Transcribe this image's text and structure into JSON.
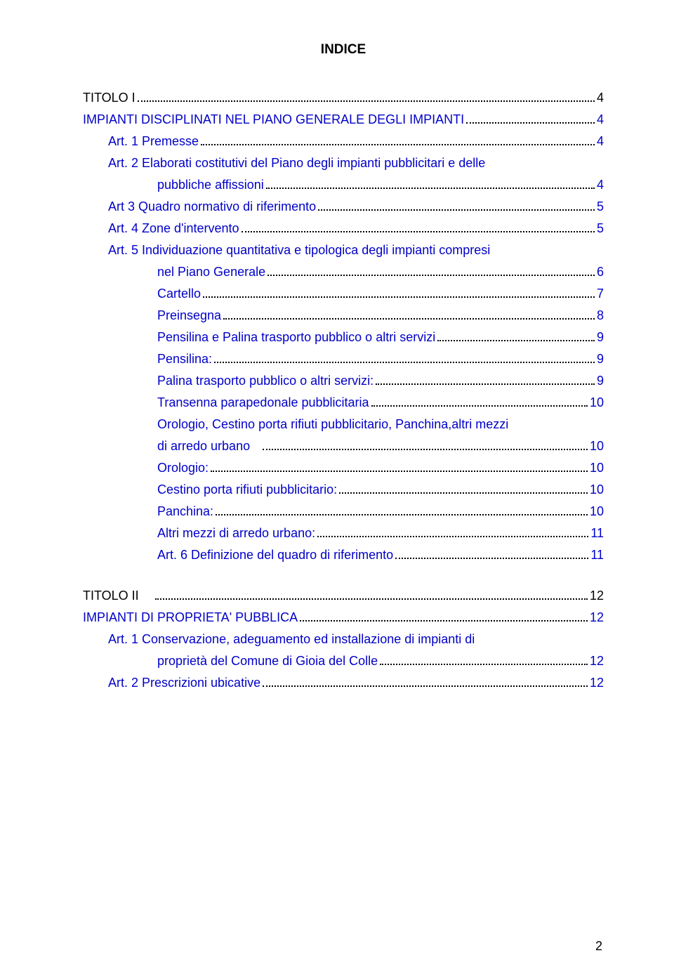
{
  "title": "INDICE",
  "page_number": "2",
  "entries": [
    {
      "label": "TITOLO I",
      "page": "4",
      "indent": "indent-0",
      "blue": false
    },
    {
      "label": "IMPIANTI DISCIPLINATI NEL PIANO GENERALE DEGLI IMPIANTI",
      "page": "4",
      "indent": "indent-0",
      "blue": true
    },
    {
      "label": "Art. 1 Premesse",
      "page": "4",
      "indent": "indent-1",
      "blue": true
    },
    {
      "label": "Art. 2 Elaborati costitutivi del Piano degli impianti pubblicitari e delle",
      "continuation": true,
      "indent": "indent-1",
      "blue": true
    },
    {
      "label": "pubbliche affissioni",
      "page": "4",
      "indent": "indent-2",
      "blue": true
    },
    {
      "label": "Art 3 Quadro normativo di riferimento",
      "page": "5",
      "indent": "indent-1",
      "blue": true
    },
    {
      "label": "Art. 4 Zone d'intervento",
      "page": "5",
      "indent": "indent-1",
      "blue": true
    },
    {
      "label": "Art. 5 Individuazione quantitativa e tipologica degli impianti compresi",
      "continuation": true,
      "indent": "indent-1",
      "blue": true
    },
    {
      "label": "nel Piano Generale",
      "page": "6",
      "indent": "indent-2",
      "blue": true
    },
    {
      "label": "Cartello",
      "page": "7",
      "indent": "indent-2b",
      "blue": true
    },
    {
      "label": "Preinsegna",
      "page": "8",
      "indent": "indent-2b",
      "blue": true
    },
    {
      "label": "Pensilina e Palina trasporto pubblico o altri servizi",
      "page": "9",
      "indent": "indent-2b",
      "blue": true
    },
    {
      "label": "Pensilina:",
      "page": "9",
      "indent": "indent-2b",
      "blue": true
    },
    {
      "label": "Palina trasporto pubblico o altri servizi:",
      "page": "9",
      "indent": "indent-2b",
      "blue": true
    },
    {
      "label": "Transenna parapedonale pubblicitaria",
      "page": "10",
      "indent": "indent-2b",
      "blue": true
    },
    {
      "label": "Orologio, Cestino porta rifiuti pubblicitario, Panchina,altri mezzi",
      "continuation": true,
      "indent": "indent-2b",
      "blue": true
    },
    {
      "label": "di arredo urbano   ",
      "page": "10",
      "indent": "indent-2b",
      "blue": true
    },
    {
      "label": "Orologio:",
      "page": "10",
      "indent": "indent-2b",
      "blue": true
    },
    {
      "label": "Cestino porta rifiuti pubblicitario:",
      "page": "10",
      "indent": "indent-2b",
      "blue": true
    },
    {
      "label": "Panchina:",
      "page": "10",
      "indent": "indent-2b",
      "blue": true
    },
    {
      "label": "Altri mezzi di arredo urbano:",
      "page": "11",
      "indent": "indent-2b",
      "blue": true
    },
    {
      "label": "Art. 6 Definizione del quadro di riferimento",
      "page": "11",
      "indent": "indent-2b",
      "blue": true
    },
    {
      "label": "TITOLO II    ",
      "page": "12",
      "indent": "indent-0",
      "blue": false,
      "gap": true
    },
    {
      "label": "IMPIANTI DI PROPRIETA' PUBBLICA",
      "page": "12",
      "indent": "indent-0",
      "blue": true
    },
    {
      "label": "Art. 1 Conservazione, adeguamento ed installazione di impianti di",
      "continuation": true,
      "indent": "indent-1",
      "blue": true
    },
    {
      "label": "proprietà del Comune di Gioia del Colle",
      "page": "12",
      "indent": "indent-2",
      "blue": true
    },
    {
      "label": "Art. 2 Prescrizioni ubicative",
      "page": "12",
      "indent": "indent-1",
      "blue": true
    }
  ]
}
